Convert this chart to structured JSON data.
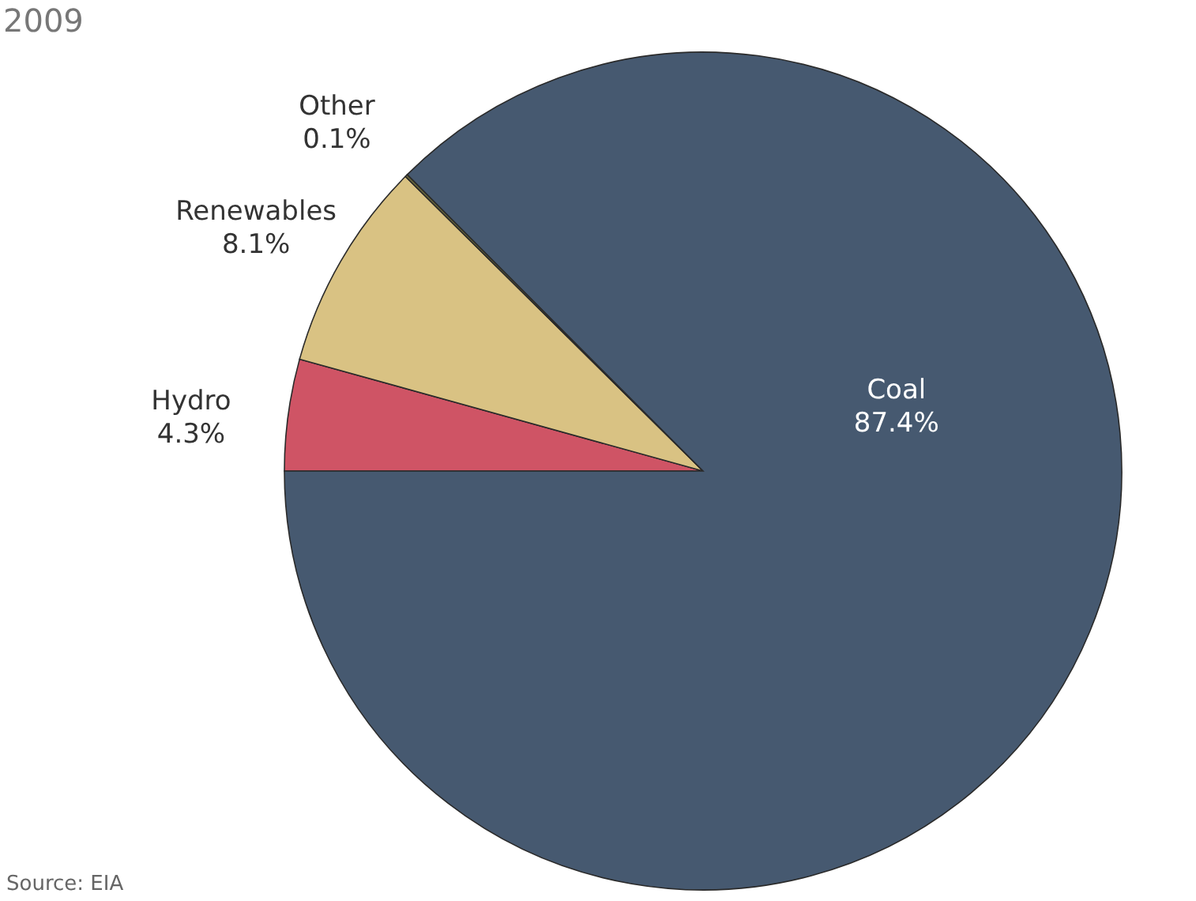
{
  "chart_data": {
    "type": "pie",
    "title": "2009",
    "categories": [
      "Hydro",
      "Renewables",
      "Other",
      "Coal"
    ],
    "values": [
      4.3,
      8.1,
      0.1,
      87.4
    ],
    "colors": [
      "#cf5465",
      "#d9c283",
      "#6b6a3c",
      "#465970"
    ],
    "value_labels": [
      "4.3%",
      "8.1%",
      "0.1%",
      "87.4%"
    ],
    "legend": false,
    "annotations": [
      "Source: EIA"
    ]
  }
}
